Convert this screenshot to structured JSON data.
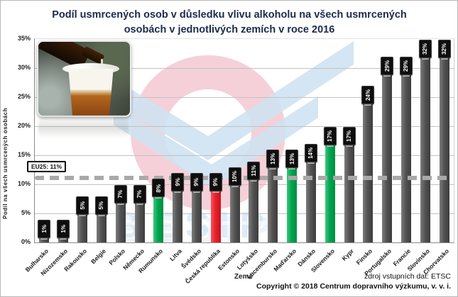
{
  "chart_data": {
    "type": "bar",
    "title": "Podíl usmrcených osob v důsledku vlivu alkoholu na všech usmrcených osobách v jednotlivých zemích v roce 2016",
    "xlabel": "Země",
    "ylabel": "Podíl na všech usmrcených osobách",
    "ylim": [
      0,
      35
    ],
    "yticks": [
      "0%",
      "5%",
      "10%",
      "15%",
      "20%",
      "25%",
      "30%",
      "35%"
    ],
    "grid": "horizontal",
    "categories": [
      "Bulharsko",
      "Nizozemsko",
      "Rakousko",
      "Belgie",
      "Polsko",
      "Německo",
      "Rumunsko",
      "Litva",
      "Švédsko",
      "Česká republika",
      "Estonsko",
      "Lotyšsko",
      "Lucembursko",
      "Maďarsko",
      "Dánsko",
      "Slovensko",
      "Kypr",
      "Finsko",
      "Portugalsko",
      "Francie",
      "Slovinsko",
      "Chorvatsko"
    ],
    "values": [
      1,
      1,
      5,
      5,
      7,
      7,
      8,
      9,
      9,
      9,
      10,
      11,
      13,
      13,
      14,
      17,
      17,
      24,
      29,
      29,
      32,
      32
    ],
    "labels": [
      "1%",
      "1%",
      "5%",
      "5%",
      "7%",
      "7%",
      "8%",
      "9%",
      "9%",
      "9%",
      "10%",
      "11%",
      "13%",
      "13%",
      "14%",
      "17%",
      "17%",
      "24%",
      "29%",
      "29%",
      "32%",
      "32%"
    ],
    "bar_color_keys": [
      "gray",
      "gray",
      "gray",
      "gray",
      "gray",
      "gray",
      "green",
      "gray",
      "gray",
      "red",
      "gray",
      "gray",
      "gray",
      "green",
      "gray",
      "green",
      "gray",
      "gray",
      "gray",
      "gray",
      "gray",
      "gray"
    ],
    "color_map": {
      "gray": "linear-gradient(90deg,#7d7d7d,#545454 45%,#3c3c3c)",
      "green": "linear-gradient(90deg,#3fc77c,#00a64f 45%,#008c42)",
      "red": "linear-gradient(90deg,#f4555d,#e8212b 45%,#c4121b)"
    },
    "legend": null,
    "reference_line": {
      "label": "EU25: 11%",
      "value": 11,
      "color": "#a9a9a9",
      "style": "dashed"
    },
    "watermark_text": "BESIP"
  },
  "footer": {
    "source": "zdroj vstupních dat: ETSC",
    "copyright": "Copyright © 2018 Centrum dopravního výzkumu, v. v. i."
  }
}
